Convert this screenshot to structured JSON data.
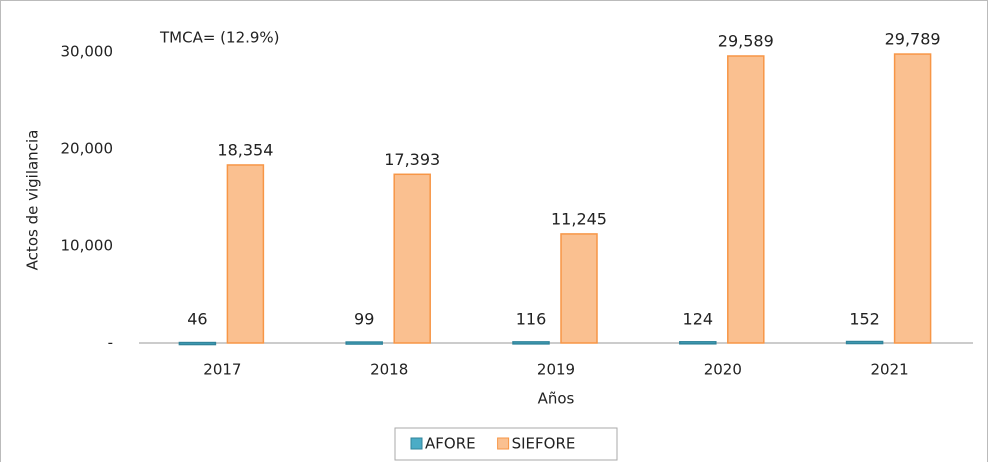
{
  "chart_data": {
    "type": "bar",
    "annotation": "TMCA= (12.9%)",
    "ylabel": "Actos de vigilancia",
    "xlabel": "Años",
    "categories": [
      "2017",
      "2018",
      "2019",
      "2020",
      "2021"
    ],
    "series": [
      {
        "name": "AFORE",
        "color": "#4bacc6",
        "values": [
          46,
          99,
          116,
          124,
          152
        ]
      },
      {
        "name": "SIEFORE",
        "color": "#fac090",
        "values": [
          18354,
          17393,
          11245,
          29589,
          29789
        ],
        "value_labels": [
          "18,354",
          "17,393",
          "11,245",
          "29,589",
          "29,789"
        ]
      }
    ],
    "ylim": [
      0,
      30000
    ],
    "yticks": [
      {
        "value": 0,
        "label": "-"
      },
      {
        "value": 10000,
        "label": "10,000"
      },
      {
        "value": 20000,
        "label": "20,000"
      },
      {
        "value": 30000,
        "label": "30,000"
      }
    ],
    "grid": false,
    "legend": "bottom"
  }
}
